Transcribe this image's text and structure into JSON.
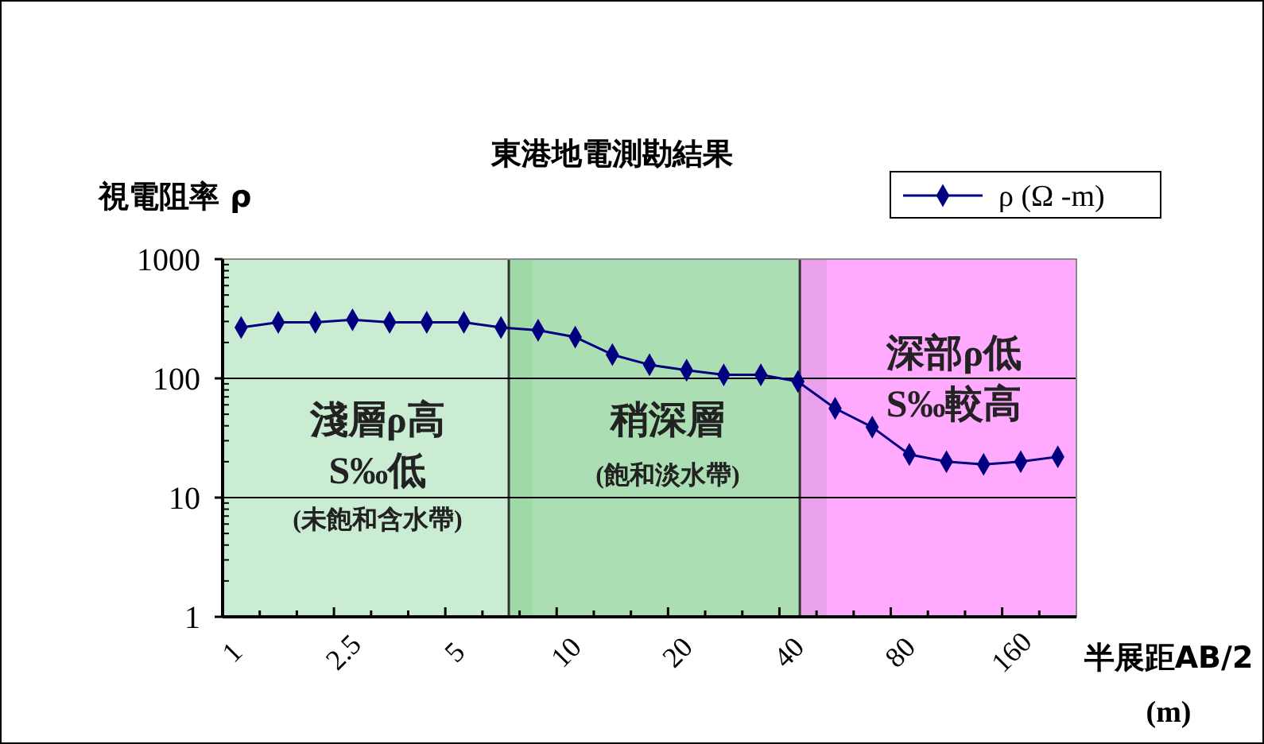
{
  "chart_data": {
    "type": "line",
    "title": "東港地電測勘結果",
    "ylabel": "視電阻率 ρ",
    "xlabel": "半展距AB/2\n(m)",
    "categories": [
      "1",
      null,
      null,
      "2.5",
      null,
      null,
      "5",
      null,
      null,
      "10",
      null,
      null,
      "20",
      null,
      null,
      "40",
      null,
      null,
      "80",
      null,
      null,
      "160",
      null
    ],
    "series": [
      {
        "name": "ρ (Ω -m)",
        "color": "#000080",
        "values": [
          267,
          295,
          295,
          310,
          295,
          295,
          295,
          267,
          253,
          222,
          158,
          130,
          117,
          107,
          107,
          94,
          56,
          39,
          23,
          20,
          19,
          20,
          22
        ]
      }
    ],
    "log": true,
    "ylim": [
      1,
      1000
    ],
    "yticks": [
      1,
      10,
      100,
      1000
    ],
    "grid": "y",
    "marker": "diamond",
    "legend": "top right",
    "annotations": [
      "淺層ρ高\nS‰低\n(未飽和含水帶)",
      "稍深層\n(飽和淡水帶)",
      "深部ρ低\nS‰較高"
    ]
  }
}
